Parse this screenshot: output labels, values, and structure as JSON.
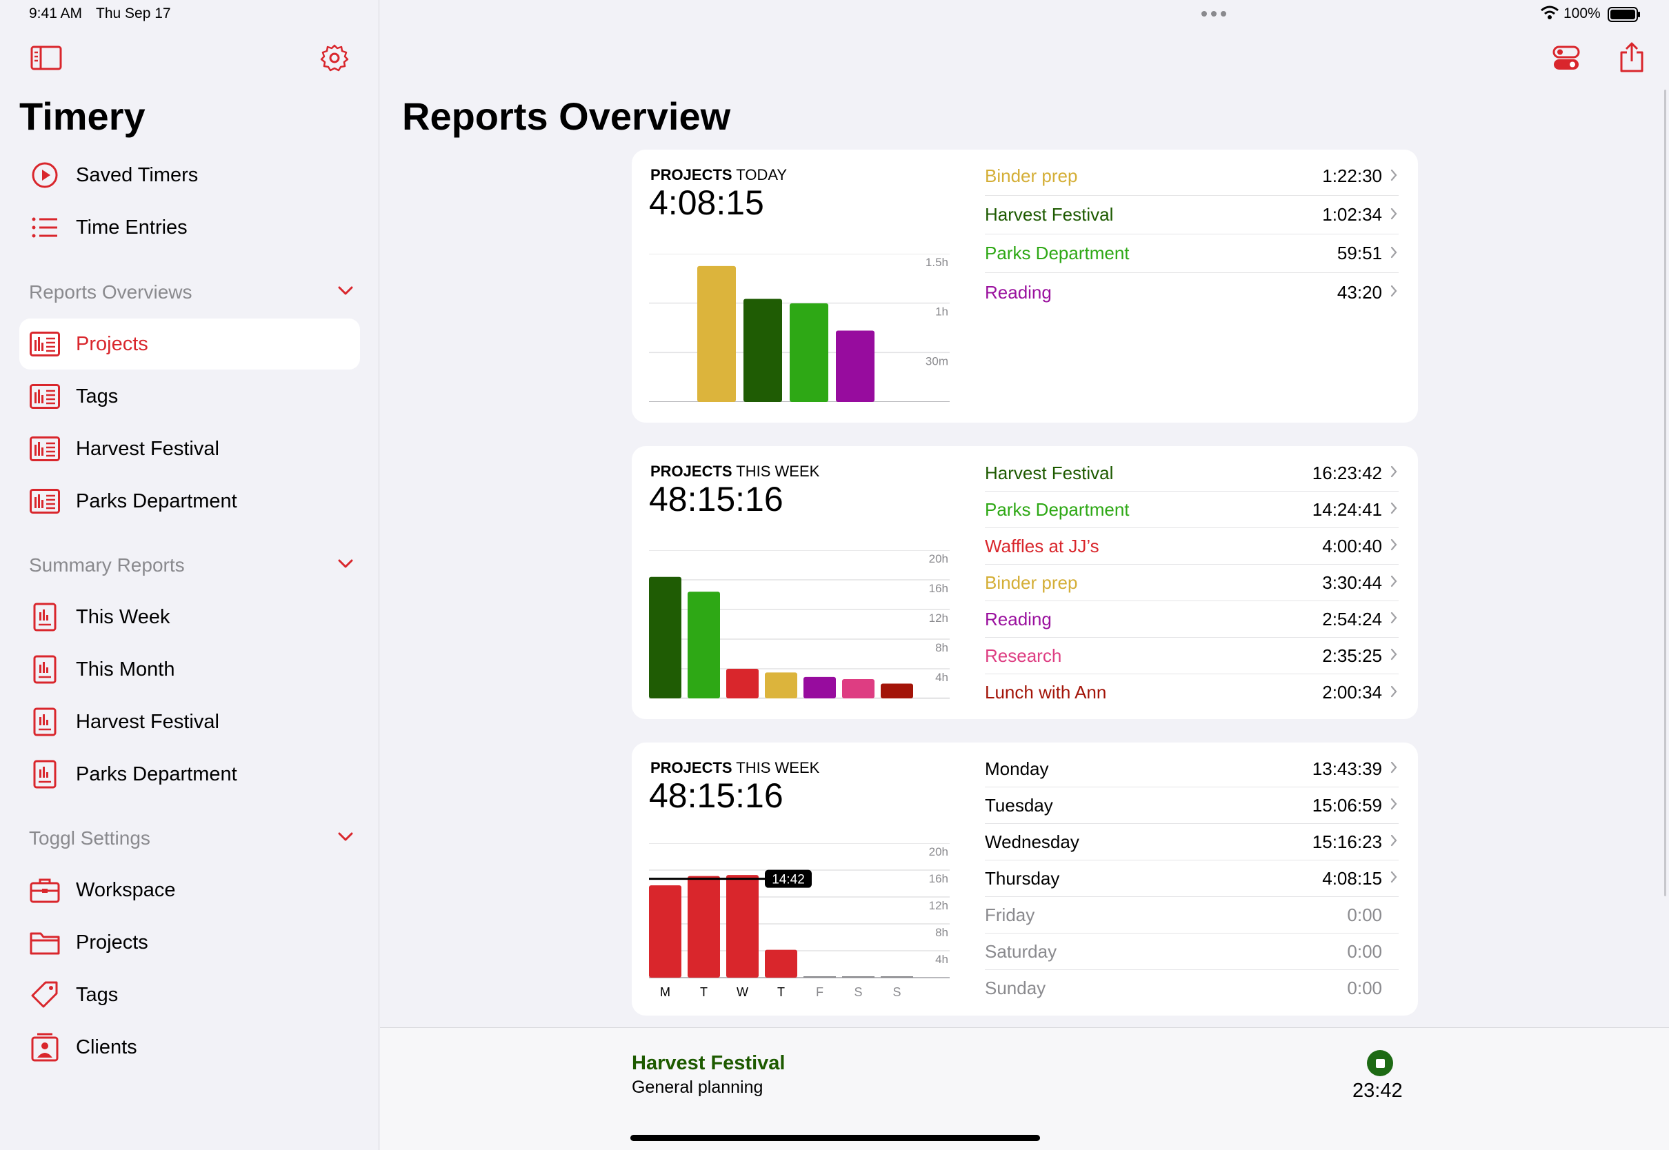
{
  "status": {
    "time": "9:41 AM",
    "date": "Thu Sep 17",
    "battery": "100%"
  },
  "colors": {
    "accent": "#d9262c"
  },
  "sidebar": {
    "title": "Timery",
    "top_items": [
      {
        "label": "Saved Timers",
        "icon": "play-circle-icon"
      },
      {
        "label": "Time Entries",
        "icon": "list-icon"
      }
    ],
    "sections": [
      {
        "title": "Reports Overviews",
        "items": [
          "Projects",
          "Tags",
          "Harvest Festival",
          "Parks Department"
        ]
      },
      {
        "title": "Summary Reports",
        "items": [
          "This Week",
          "This Month",
          "Harvest Festival",
          "Parks Department"
        ]
      },
      {
        "title": "Toggl Settings",
        "items": [
          "Workspace",
          "Projects",
          "Tags",
          "Clients"
        ]
      }
    ]
  },
  "main": {
    "title": "Reports Overview",
    "cards": [
      {
        "kicker_bold": "PROJECTS",
        "kicker_rest": " TODAY",
        "total": "4:08:15",
        "rows": [
          {
            "name": "Binder prep",
            "value": "1:22:30",
            "color": "#d4ae36"
          },
          {
            "name": "Harvest Festival",
            "value": "1:02:34",
            "color": "#1d5a00"
          },
          {
            "name": "Parks Department",
            "value": "59:51",
            "color": "#2ea815"
          },
          {
            "name": "Reading",
            "value": "43:20",
            "color": "#9a109e"
          }
        ]
      },
      {
        "kicker_bold": "PROJECTS",
        "kicker_rest": " THIS WEEK",
        "total": "48:15:16",
        "rows": [
          {
            "name": "Harvest Festival",
            "value": "16:23:42",
            "color": "#1d5a00"
          },
          {
            "name": "Parks Department",
            "value": "14:24:41",
            "color": "#2ea815"
          },
          {
            "name": "Waffles at JJ’s",
            "value": "4:00:40",
            "color": "#d9262c"
          },
          {
            "name": "Binder prep",
            "value": "3:30:44",
            "color": "#d4ae36"
          },
          {
            "name": "Reading",
            "value": "2:54:24",
            "color": "#9a109e"
          },
          {
            "name": "Research",
            "value": "2:35:25",
            "color": "#de3d82"
          },
          {
            "name": "Lunch with Ann",
            "value": "2:00:34",
            "color": "#a31408"
          }
        ]
      },
      {
        "kicker_bold": "PROJECTS",
        "kicker_rest": " THIS WEEK",
        "total": "48:15:16",
        "rows": [
          {
            "name": "Monday",
            "value": "13:43:39",
            "color": "#000000"
          },
          {
            "name": "Tuesday",
            "value": "15:06:59",
            "color": "#000000"
          },
          {
            "name": "Wednesday",
            "value": "15:16:23",
            "color": "#000000"
          },
          {
            "name": "Thursday",
            "value": "4:08:15",
            "color": "#000000"
          },
          {
            "name": "Friday",
            "value": "0:00",
            "color": "#8a8a8e"
          },
          {
            "name": "Saturday",
            "value": "0:00",
            "color": "#8a8a8e"
          },
          {
            "name": "Sunday",
            "value": "0:00",
            "color": "#8a8a8e"
          }
        ]
      }
    ]
  },
  "chart_data": [
    {
      "type": "bar",
      "categories": [
        "Binder prep",
        "Harvest Festival",
        "Parks Department",
        "Reading"
      ],
      "values": [
        1.375,
        1.043,
        0.998,
        0.722
      ],
      "colors": [
        "#dcb43c",
        "#1f5c04",
        "#2ea815",
        "#970c9e"
      ],
      "tick_labels": [
        "30m",
        "1h",
        "1.5h"
      ],
      "ticks": [
        0.5,
        1,
        1.5
      ],
      "ylim": [
        0,
        1.5
      ]
    },
    {
      "type": "bar",
      "categories": [
        "Harvest Festival",
        "Parks Department",
        "Waffles at JJ’s",
        "Binder prep",
        "Reading",
        "Research",
        "Lunch with Ann"
      ],
      "values": [
        16.4,
        14.4,
        4.0,
        3.5,
        2.9,
        2.6,
        2.0
      ],
      "colors": [
        "#1f5c04",
        "#2ea815",
        "#d9262c",
        "#dcb43c",
        "#970c9e",
        "#de3d82",
        "#a31408"
      ],
      "tick_labels": [
        "4h",
        "8h",
        "12h",
        "16h",
        "20h"
      ],
      "ticks": [
        4,
        8,
        12,
        16,
        20
      ],
      "ylim": [
        0,
        20
      ]
    },
    {
      "type": "bar",
      "categories": [
        "M",
        "T",
        "W",
        "T",
        "F",
        "S",
        "S"
      ],
      "values": [
        13.73,
        15.12,
        15.27,
        4.14,
        0,
        0,
        0
      ],
      "colors": [
        "#d9262c",
        "#d9262c",
        "#d9262c",
        "#d9262c",
        "#8a8a8e",
        "#8a8a8e",
        "#8a8a8e"
      ],
      "tick_labels": [
        "4h",
        "8h",
        "12h",
        "16h",
        "20h"
      ],
      "ticks": [
        4,
        8,
        12,
        16,
        20
      ],
      "ylim": [
        0,
        20
      ],
      "average_value": 14.7,
      "average_label": "14:42"
    }
  ],
  "footer": {
    "project": "Harvest Festival",
    "description": "General planning",
    "elapsed": "23:42"
  }
}
